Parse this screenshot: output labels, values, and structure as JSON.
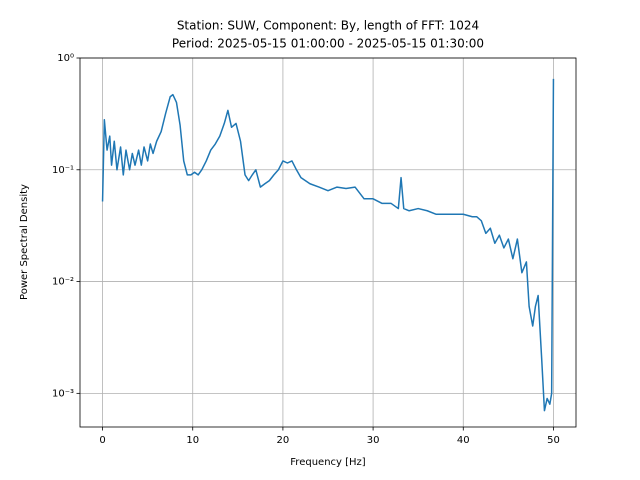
{
  "chart_data": {
    "type": "line",
    "title": [
      "Station: SUW, Component: By, length of FFT: 1024",
      "Period: 2025-05-15 01:00:00 - 2025-05-15 01:30:00"
    ],
    "x_label": "Frequency [Hz]",
    "y_label": "Power Spectral Density",
    "yscale": "log",
    "grid": true,
    "color": "#1f77b4",
    "xlim": [
      -2.5,
      52.5
    ],
    "xticks": [
      0,
      10,
      20,
      30,
      40,
      50
    ],
    "ylim": [
      0.0005,
      1
    ],
    "yticks": [
      {
        "value": 0.001,
        "label": "10⁻³"
      },
      {
        "value": 0.01,
        "label": "10⁻²"
      },
      {
        "value": 0.1,
        "label": "10⁻¹"
      },
      {
        "value": 1,
        "label": "10⁰"
      }
    ],
    "x": [
      0,
      0.2,
      0.5,
      0.8,
      1.0,
      1.3,
      1.6,
      2.0,
      2.3,
      2.6,
      3.0,
      3.3,
      3.6,
      4.0,
      4.3,
      4.6,
      5.0,
      5.3,
      5.6,
      6.0,
      6.5,
      7.0,
      7.5,
      7.8,
      8.2,
      8.6,
      9.0,
      9.4,
      9.8,
      10.2,
      10.6,
      11.0,
      11.5,
      12.0,
      12.5,
      13.0,
      13.5,
      13.9,
      14.3,
      14.8,
      15.3,
      15.8,
      16.2,
      16.6,
      17.0,
      17.5,
      18.0,
      18.5,
      19.0,
      19.5,
      20.0,
      20.5,
      21.0,
      21.5,
      22.0,
      23.0,
      24.0,
      25.0,
      26.0,
      27.0,
      28.0,
      29.0,
      30.0,
      31.0,
      32.0,
      32.8,
      33.1,
      33.4,
      34.0,
      35.0,
      36.0,
      37.0,
      38.0,
      39.0,
      40.0,
      41.0,
      41.5,
      42.0,
      42.5,
      43.0,
      43.5,
      44.0,
      44.5,
      45.0,
      45.5,
      46.0,
      46.5,
      47.0,
      47.3,
      47.7,
      48.0,
      48.3,
      48.7,
      49.0,
      49.3,
      49.6,
      49.8,
      50.0
    ],
    "values": [
      0.052,
      0.28,
      0.15,
      0.2,
      0.11,
      0.18,
      0.1,
      0.16,
      0.09,
      0.15,
      0.1,
      0.14,
      0.11,
      0.15,
      0.11,
      0.16,
      0.12,
      0.17,
      0.14,
      0.18,
      0.22,
      0.32,
      0.45,
      0.47,
      0.4,
      0.25,
      0.12,
      0.09,
      0.09,
      0.095,
      0.09,
      0.1,
      0.12,
      0.15,
      0.17,
      0.2,
      0.26,
      0.34,
      0.24,
      0.26,
      0.18,
      0.09,
      0.08,
      0.09,
      0.1,
      0.07,
      0.075,
      0.08,
      0.09,
      0.1,
      0.12,
      0.115,
      0.12,
      0.1,
      0.085,
      0.075,
      0.07,
      0.065,
      0.07,
      0.068,
      0.07,
      0.055,
      0.055,
      0.05,
      0.05,
      0.045,
      0.085,
      0.045,
      0.043,
      0.045,
      0.043,
      0.04,
      0.04,
      0.04,
      0.04,
      0.038,
      0.038,
      0.035,
      0.027,
      0.03,
      0.022,
      0.026,
      0.02,
      0.024,
      0.016,
      0.024,
      0.012,
      0.015,
      0.006,
      0.004,
      0.006,
      0.0075,
      0.002,
      0.0007,
      0.0009,
      0.0008,
      0.001,
      0.65
    ]
  }
}
